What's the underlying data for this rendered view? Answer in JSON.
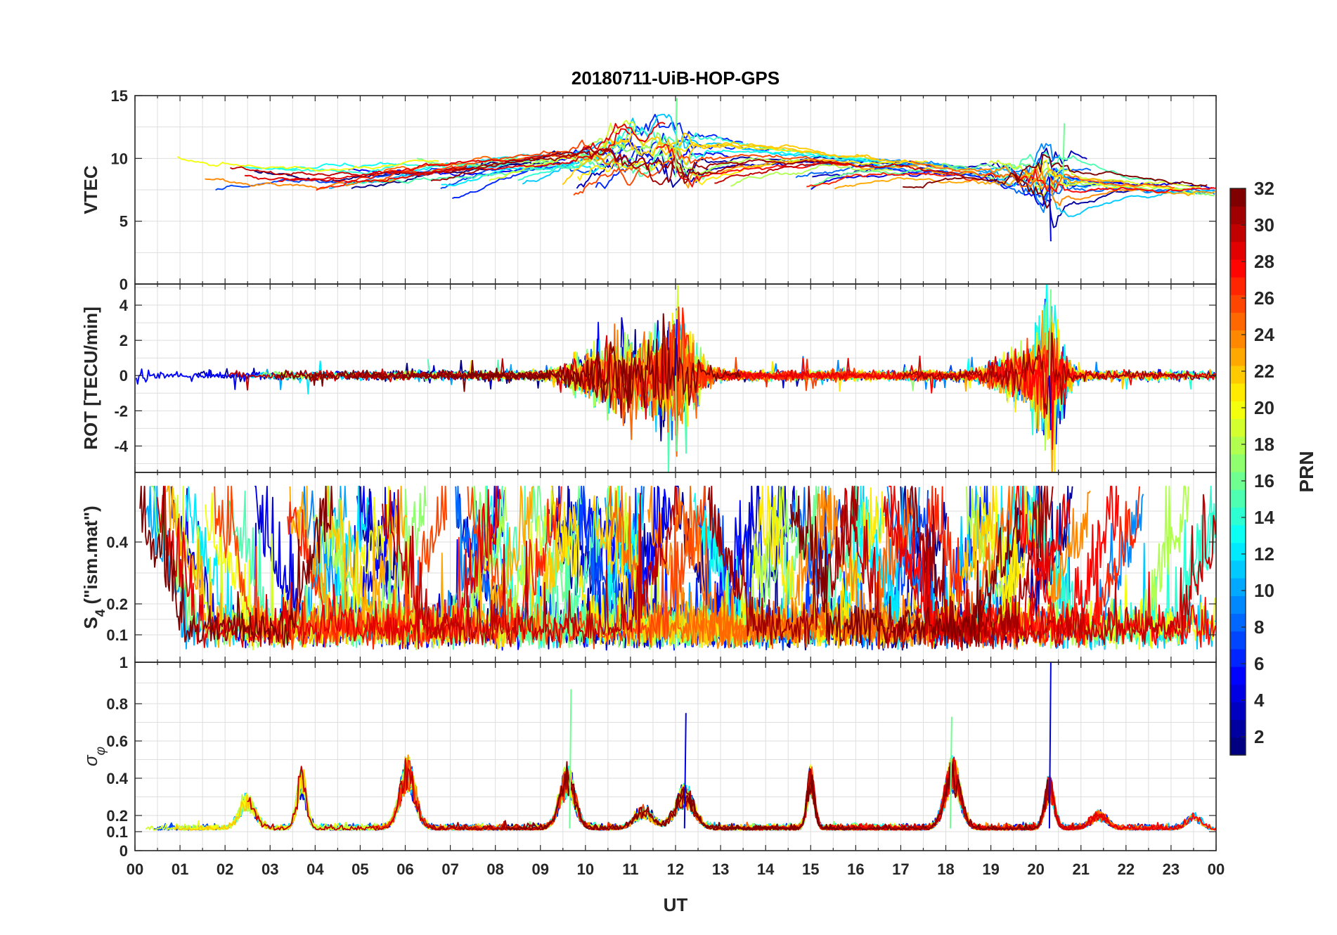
{
  "chart_data": {
    "type": "line",
    "title": "20180711-UiB-HOP-GPS",
    "xlabel": "UT",
    "x_tick_labels": [
      "00",
      "01",
      "02",
      "03",
      "04",
      "05",
      "06",
      "07",
      "08",
      "09",
      "10",
      "11",
      "12",
      "13",
      "14",
      "15",
      "16",
      "17",
      "18",
      "19",
      "20",
      "21",
      "22",
      "23",
      "00"
    ],
    "x_range_hours": [
      0,
      24
    ],
    "grid": true,
    "colorbar": {
      "label": "PRN",
      "range": [
        1,
        32
      ],
      "tick_labels": [
        "2",
        "4",
        "6",
        "8",
        "10",
        "12",
        "14",
        "16",
        "18",
        "20",
        "22",
        "24",
        "26",
        "28",
        "30",
        "32"
      ],
      "colormap": "jet",
      "placement": "right"
    },
    "panels": [
      {
        "id": "vtec",
        "ylabel": "VTEC",
        "ylim": [
          0,
          15
        ],
        "y_ticks": [
          0,
          5,
          10,
          15
        ],
        "y_tick_labels": [
          "0",
          "5",
          "10",
          "15"
        ],
        "series_seed": 11,
        "description_of_values": "PRN tracks mostly between 6 and 12 TECU",
        "events": [
          {
            "t": 12.0,
            "value": 14.8
          },
          {
            "t": 20.3,
            "value": 3.4
          },
          {
            "t": 20.6,
            "value": 12.8
          }
        ]
      },
      {
        "id": "rot",
        "ylabel": "ROT [TECU/min]",
        "ylim": [
          -5.5,
          5.2
        ],
        "y_ticks": [
          -4,
          -2,
          0,
          2,
          4
        ],
        "y_tick_labels": [
          "-4",
          "-2",
          "0",
          "2",
          "4"
        ],
        "series_seed": 23,
        "events": [
          {
            "t": 12.0,
            "value": -4.3
          },
          {
            "t": 12.0,
            "value": 3.2
          },
          {
            "t": 20.3,
            "value": 4.9
          },
          {
            "t": 20.3,
            "value": -3.1
          }
        ]
      },
      {
        "id": "s4",
        "ylabel": "S4 (\"ism.mat\")",
        "ylabel_main": "S",
        "ylabel_sub": "4",
        "ylabel_rest": " (\"ism.mat\")",
        "ylim": [
          0.03,
          0.6
        ],
        "y_ticks": [
          0.1,
          0.2,
          0.4
        ],
        "y_tick_labels": [
          "0.1",
          "0.2",
          "0.4"
        ],
        "series_seed": 37
      },
      {
        "id": "sigma",
        "ylabel": "σφ",
        "ylabel_main": "σ",
        "ylabel_sub": "φ",
        "ylim": [
          0,
          1.0
        ],
        "y_ticks": [
          0,
          0.1,
          0.2,
          0.4,
          0.6,
          0.8,
          1
        ],
        "y_tick_labels": [
          "0",
          "0.1",
          "0.2",
          "0.4",
          "0.6",
          "0.8",
          "1"
        ],
        "series_seed": 53,
        "events": [
          {
            "t": 9.65,
            "value": 0.87
          },
          {
            "t": 20.3,
            "value": 1.0
          },
          {
            "t": 18.1,
            "value": 0.73
          },
          {
            "t": 12.2,
            "value": 0.75
          }
        ]
      }
    ]
  }
}
